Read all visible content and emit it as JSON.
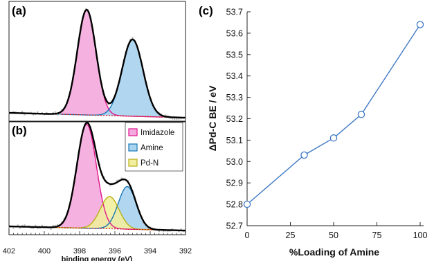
{
  "chart_data": [
    {
      "panel": "(a)",
      "type": "area",
      "xlim": [
        402,
        392
      ],
      "x_reversed": true,
      "series": [
        {
          "peaks": [
            {
              "center": 397.6,
              "fwhm": 1.25,
              "height": 1.0
            }
          ],
          "color": "#f4a9dd",
          "line": "#e0168f"
        },
        {
          "peaks": [
            {
              "center": 395.0,
              "fwhm": 1.4,
              "height": 0.73
            }
          ],
          "color": "#a9d3ee",
          "line": "#1677b8"
        }
      ]
    },
    {
      "panel": "(b)",
      "type": "area",
      "xlabel": "binding energy (eV)",
      "xlim": [
        402,
        392
      ],
      "x_reversed": true,
      "xticks": [
        402,
        400,
        398,
        396,
        394,
        392
      ],
      "series": [
        {
          "name": "Imidazole",
          "peaks": [
            {
              "center": 397.6,
              "fwhm": 1.3,
              "height": 1.0
            }
          ],
          "color": "#f4a9dd",
          "line": "#e0168f"
        },
        {
          "name": "Amine",
          "peaks": [
            {
              "center": 395.3,
              "fwhm": 1.2,
              "height": 0.41
            }
          ],
          "color": "#a9d3ee",
          "line": "#1677b8"
        },
        {
          "name": "Pd-N",
          "peaks": [
            {
              "center": 396.3,
              "fwhm": 1.25,
              "height": 0.31
            }
          ],
          "color": "#f2ee9f",
          "line": "#b8b014"
        }
      ],
      "legend": "top-right"
    },
    {
      "panel": "(c)",
      "type": "scatter",
      "xlabel": "%Loading of Amine",
      "ylabel": "ΔPd-C BE / eV",
      "xlim": [
        0,
        100
      ],
      "ylim": [
        52.7,
        53.7
      ],
      "xticks": [
        0,
        25,
        50,
        75,
        100
      ],
      "yticks": [
        52.7,
        52.8,
        52.9,
        53.0,
        53.1,
        53.2,
        53.3,
        53.4,
        53.5,
        53.6,
        53.7
      ],
      "x": [
        0,
        33,
        50,
        66,
        100
      ],
      "y": [
        52.8,
        53.03,
        53.11,
        53.22,
        53.64
      ],
      "line_color": "#3f78c5",
      "marker": "open-circle"
    }
  ]
}
